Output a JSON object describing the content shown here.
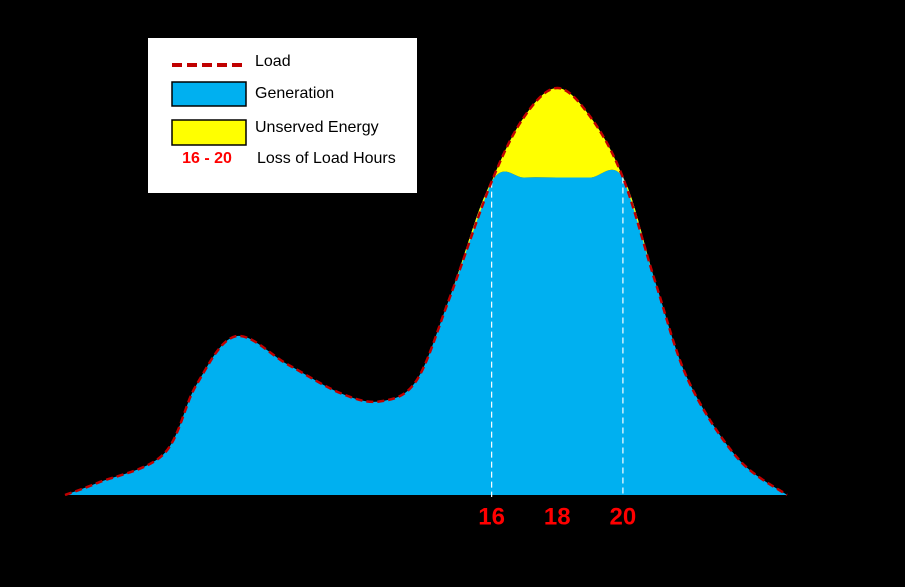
{
  "chart_data": {
    "type": "area",
    "x": [
      3,
      4,
      6,
      7,
      8.2,
      9.8,
      11.4,
      12.6,
      13.7,
      14.7,
      16,
      17,
      18,
      19,
      20,
      21,
      22,
      23.5,
      25
    ],
    "series": [
      {
        "name": "Load",
        "color": "#c00000",
        "style": "dashed-line",
        "values": [
          0,
          3,
          10,
          27,
          39,
          32,
          25,
          23,
          28,
          48,
          77,
          93,
          100,
          93,
          78,
          52,
          28,
          9,
          0
        ]
      },
      {
        "name": "Generation",
        "color": "#00b0f0",
        "style": "area",
        "values": [
          0,
          3,
          10,
          27,
          39,
          32,
          25,
          23,
          28,
          48,
          77,
          78,
          78,
          78,
          78,
          52,
          28,
          9,
          0
        ]
      },
      {
        "name": "Unserved Energy",
        "color": "#ffff00",
        "style": "area",
        "stacked": true,
        "values": [
          0,
          0,
          0,
          0,
          0,
          0,
          0,
          0,
          0,
          0,
          0,
          15,
          22,
          15,
          0,
          0,
          0,
          0,
          0
        ]
      }
    ],
    "xlim": [
      3,
      25
    ],
    "ylim": [
      0,
      100
    ],
    "xticks": [
      16,
      18,
      20
    ],
    "tick_color": "#ff0000",
    "annotation": {
      "label": "16 - 20",
      "text": "Loss of Load Hours",
      "range": [
        16,
        20
      ]
    }
  }
}
